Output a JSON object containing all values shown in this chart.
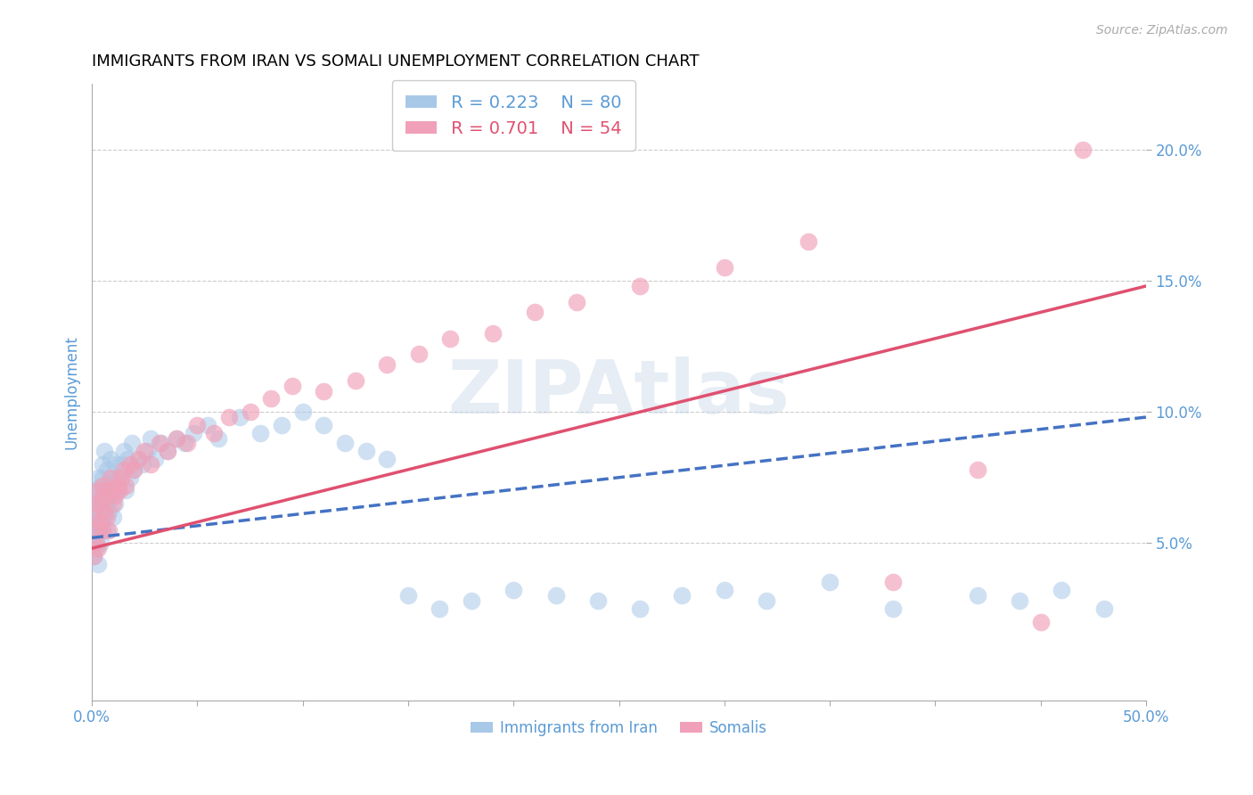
{
  "title": "IMMIGRANTS FROM IRAN VS SOMALI UNEMPLOYMENT CORRELATION CHART",
  "source": "Source: ZipAtlas.com",
  "ylabel": "Unemployment",
  "xlim": [
    0.0,
    0.5
  ],
  "ylim": [
    -0.01,
    0.225
  ],
  "xticks": [
    0.0,
    0.05,
    0.1,
    0.15,
    0.2,
    0.25,
    0.3,
    0.35,
    0.4,
    0.45,
    0.5
  ],
  "xticklabels": [
    "0.0%",
    "",
    "",
    "",
    "",
    "",
    "",
    "",
    "",
    "",
    "50.0%"
  ],
  "yticks": [
    0.05,
    0.1,
    0.15,
    0.2
  ],
  "yticklabels": [
    "5.0%",
    "10.0%",
    "15.0%",
    "20.0%"
  ],
  "blue_color": "#a8c8e8",
  "pink_color": "#f0a0b8",
  "axis_label_color": "#5b9bd5",
  "grid_color": "#cccccc",
  "legend_label_blue": "Immigrants from Iran",
  "legend_label_pink": "Somalis",
  "legend_R_blue": "R = 0.223",
  "legend_N_blue": "N = 80",
  "legend_R_pink": "R = 0.701",
  "legend_N_pink": "N = 54",
  "watermark": "ZIPAtlas",
  "title_fontsize": 13,
  "blue_trend_x": [
    0.0,
    0.5
  ],
  "blue_trend_y": [
    0.052,
    0.098
  ],
  "pink_trend_x": [
    0.0,
    0.5
  ],
  "pink_trend_y": [
    0.048,
    0.148
  ],
  "blue_scatter_x": [
    0.001,
    0.001,
    0.001,
    0.001,
    0.002,
    0.002,
    0.002,
    0.002,
    0.003,
    0.003,
    0.003,
    0.003,
    0.003,
    0.004,
    0.004,
    0.004,
    0.004,
    0.005,
    0.005,
    0.005,
    0.005,
    0.006,
    0.006,
    0.006,
    0.007,
    0.007,
    0.007,
    0.008,
    0.008,
    0.009,
    0.009,
    0.01,
    0.01,
    0.011,
    0.011,
    0.012,
    0.013,
    0.014,
    0.015,
    0.016,
    0.017,
    0.018,
    0.019,
    0.02,
    0.022,
    0.024,
    0.026,
    0.028,
    0.03,
    0.033,
    0.036,
    0.04,
    0.044,
    0.048,
    0.055,
    0.06,
    0.07,
    0.08,
    0.09,
    0.1,
    0.11,
    0.12,
    0.13,
    0.14,
    0.15,
    0.165,
    0.18,
    0.2,
    0.22,
    0.24,
    0.26,
    0.28,
    0.3,
    0.32,
    0.35,
    0.38,
    0.42,
    0.44,
    0.46,
    0.48
  ],
  "blue_scatter_y": [
    0.05,
    0.055,
    0.06,
    0.045,
    0.065,
    0.052,
    0.058,
    0.048,
    0.07,
    0.062,
    0.055,
    0.075,
    0.042,
    0.068,
    0.058,
    0.072,
    0.05,
    0.065,
    0.075,
    0.055,
    0.08,
    0.07,
    0.06,
    0.085,
    0.065,
    0.078,
    0.055,
    0.072,
    0.062,
    0.068,
    0.082,
    0.075,
    0.06,
    0.08,
    0.065,
    0.07,
    0.075,
    0.08,
    0.085,
    0.07,
    0.082,
    0.075,
    0.088,
    0.078,
    0.082,
    0.08,
    0.085,
    0.09,
    0.082,
    0.088,
    0.085,
    0.09,
    0.088,
    0.092,
    0.095,
    0.09,
    0.098,
    0.092,
    0.095,
    0.1,
    0.095,
    0.088,
    0.085,
    0.082,
    0.03,
    0.025,
    0.028,
    0.032,
    0.03,
    0.028,
    0.025,
    0.03,
    0.032,
    0.028,
    0.035,
    0.025,
    0.03,
    0.028,
    0.032,
    0.025
  ],
  "pink_scatter_x": [
    0.001,
    0.001,
    0.002,
    0.002,
    0.003,
    0.003,
    0.003,
    0.004,
    0.004,
    0.005,
    0.005,
    0.006,
    0.006,
    0.007,
    0.008,
    0.008,
    0.009,
    0.01,
    0.011,
    0.012,
    0.013,
    0.014,
    0.015,
    0.016,
    0.018,
    0.02,
    0.022,
    0.025,
    0.028,
    0.032,
    0.036,
    0.04,
    0.045,
    0.05,
    0.058,
    0.065,
    0.075,
    0.085,
    0.095,
    0.11,
    0.125,
    0.14,
    0.155,
    0.17,
    0.19,
    0.21,
    0.23,
    0.26,
    0.3,
    0.34,
    0.38,
    0.42,
    0.45,
    0.47
  ],
  "pink_scatter_y": [
    0.045,
    0.06,
    0.05,
    0.065,
    0.055,
    0.048,
    0.07,
    0.058,
    0.065,
    0.055,
    0.072,
    0.062,
    0.068,
    0.06,
    0.07,
    0.055,
    0.075,
    0.065,
    0.068,
    0.072,
    0.07,
    0.075,
    0.078,
    0.072,
    0.08,
    0.078,
    0.082,
    0.085,
    0.08,
    0.088,
    0.085,
    0.09,
    0.088,
    0.095,
    0.092,
    0.098,
    0.1,
    0.105,
    0.11,
    0.108,
    0.112,
    0.118,
    0.122,
    0.128,
    0.13,
    0.138,
    0.142,
    0.148,
    0.155,
    0.165,
    0.035,
    0.078,
    0.02,
    0.2
  ]
}
